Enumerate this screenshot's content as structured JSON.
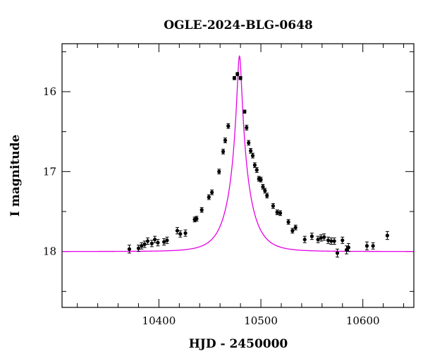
{
  "chart_data": {
    "type": "scatter",
    "title": "OGLE-2024-BLG-0648",
    "xlabel": "HJD - 2450000",
    "ylabel": "I magnitude",
    "xlim": [
      10305,
      10650
    ],
    "ylim": [
      18.7,
      15.4
    ],
    "y_inverted": true,
    "grid": false,
    "x_ticks_major": [
      10400,
      10500,
      10600
    ],
    "x_tick_labels": [
      "10400",
      "10500",
      "10600"
    ],
    "y_ticks_major": [
      16,
      17,
      18
    ],
    "y_tick_labels": [
      "16",
      "17",
      "18"
    ],
    "colors": {
      "model": "#e600e6",
      "points": "#000000"
    },
    "model": {
      "t0": 10479,
      "tE": 19,
      "u0": 0.105,
      "m_base": 18.0
    },
    "series": [
      {
        "type": "scatter_errorbar",
        "points": [
          [
            10371,
            17.97,
            0.05
          ],
          [
            10380,
            17.96,
            0.04
          ],
          [
            10383,
            17.93,
            0.04
          ],
          [
            10386,
            17.91,
            0.04
          ],
          [
            10389,
            17.87,
            0.04
          ],
          [
            10393,
            17.9,
            0.04
          ],
          [
            10396,
            17.85,
            0.04
          ],
          [
            10399,
            17.89,
            0.04
          ],
          [
            10405,
            17.88,
            0.04
          ],
          [
            10408,
            17.86,
            0.04
          ],
          [
            10418,
            17.74,
            0.04
          ],
          [
            10421,
            17.78,
            0.04
          ],
          [
            10426,
            17.77,
            0.04
          ],
          [
            10435,
            17.6,
            0.03
          ],
          [
            10437,
            17.59,
            0.03
          ],
          [
            10442,
            17.48,
            0.03
          ],
          [
            10449,
            17.32,
            0.03
          ],
          [
            10452,
            17.26,
            0.03
          ],
          [
            10459,
            17.0,
            0.03
          ],
          [
            10463,
            16.75,
            0.03
          ],
          [
            10465,
            16.61,
            0.03
          ],
          [
            10468,
            16.43,
            0.03
          ],
          [
            10474,
            15.83,
            0.02
          ],
          [
            10477,
            15.78,
            0.02
          ],
          [
            10480,
            15.83,
            0.02
          ],
          [
            10484,
            16.25,
            0.02
          ],
          [
            10486,
            16.45,
            0.03
          ],
          [
            10488,
            16.64,
            0.03
          ],
          [
            10490,
            16.74,
            0.03
          ],
          [
            10492,
            16.8,
            0.03
          ],
          [
            10494,
            16.92,
            0.03
          ],
          [
            10496,
            16.98,
            0.03
          ],
          [
            10498,
            17.09,
            0.03
          ],
          [
            10500,
            17.1,
            0.03
          ],
          [
            10502,
            17.19,
            0.03
          ],
          [
            10504,
            17.24,
            0.03
          ],
          [
            10506,
            17.3,
            0.03
          ],
          [
            10512,
            17.43,
            0.03
          ],
          [
            10516,
            17.51,
            0.03
          ],
          [
            10519,
            17.52,
            0.03
          ],
          [
            10527,
            17.63,
            0.03
          ],
          [
            10531,
            17.74,
            0.03
          ],
          [
            10534,
            17.7,
            0.03
          ],
          [
            10543,
            17.85,
            0.04
          ],
          [
            10550,
            17.81,
            0.04
          ],
          [
            10556,
            17.85,
            0.04
          ],
          [
            10559,
            17.83,
            0.04
          ],
          [
            10562,
            17.82,
            0.04
          ],
          [
            10566,
            17.86,
            0.04
          ],
          [
            10569,
            17.87,
            0.04
          ],
          [
            10572,
            17.87,
            0.04
          ],
          [
            10575,
            18.02,
            0.05
          ],
          [
            10580,
            17.86,
            0.04
          ],
          [
            10584,
            17.98,
            0.05
          ],
          [
            10586,
            17.95,
            0.05
          ],
          [
            10604,
            17.93,
            0.05
          ],
          [
            10610,
            17.93,
            0.04
          ],
          [
            10624,
            17.8,
            0.05
          ]
        ]
      }
    ]
  }
}
